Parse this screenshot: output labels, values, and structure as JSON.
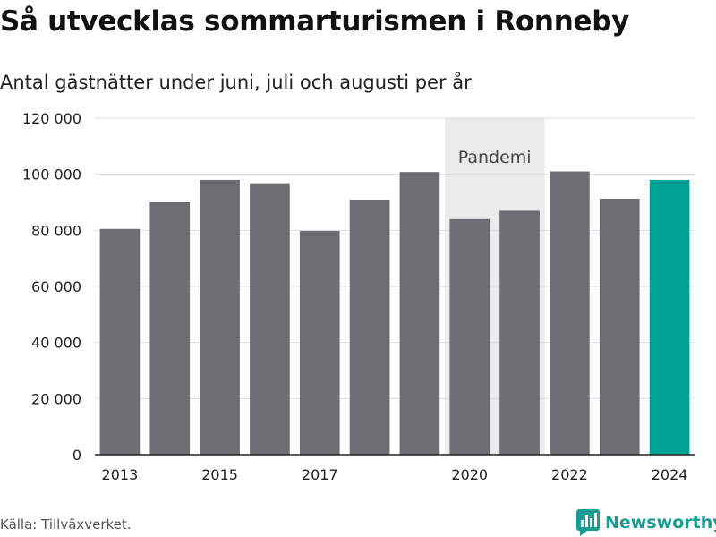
{
  "header": {
    "title": "Så utvecklas sommarturismen i Ronneby",
    "subtitle": "Antal gästnätter under juni, juli och augusti per år"
  },
  "footer": {
    "source": "Källa: Tillväxverket.",
    "brand": "Newsworthy"
  },
  "colors": {
    "bar": "#6e6d72",
    "highlight": "#00a396",
    "shade": "#ebebeb",
    "grid": "#dddddd",
    "brand": "#1a9c93"
  },
  "chart_data": {
    "type": "bar",
    "title": "Så utvecklas sommarturismen i Ronneby",
    "subtitle": "Antal gästnätter under juni, juli och augusti per år",
    "categories": [
      "2013",
      "2014",
      "2015",
      "2016",
      "2017",
      "2018",
      "2019",
      "2020",
      "2021",
      "2022",
      "2023",
      "2024"
    ],
    "values": [
      80500,
      90000,
      98000,
      96500,
      79800,
      90700,
      100800,
      84000,
      87000,
      101000,
      91300,
      98000
    ],
    "highlight_category": "2024",
    "x_tick_labels": [
      "2013",
      "2015",
      "2017",
      "2020",
      "2022",
      "2024"
    ],
    "y_tick_values": [
      0,
      20000,
      40000,
      60000,
      80000,
      100000,
      120000
    ],
    "y_tick_labels": [
      "0",
      "20 000",
      "40 000",
      "60 000",
      "80 000",
      "100 000",
      "120 000"
    ],
    "ylim": [
      0,
      120000
    ],
    "grid": true,
    "shaded_region": {
      "from": "2020",
      "to": "2021",
      "label": "Pandemi"
    }
  }
}
